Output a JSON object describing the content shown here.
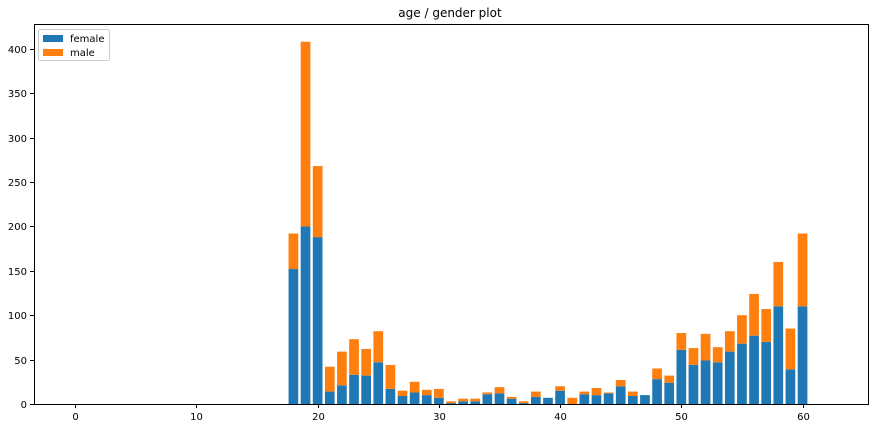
{
  "chart_data": {
    "type": "bar",
    "stacked": true,
    "title": "age / gender plot",
    "xlabel": "",
    "ylabel": "",
    "xlim": [
      -3.4,
      65.4
    ],
    "ylim": [
      0,
      428
    ],
    "xticks": [
      0,
      10,
      20,
      30,
      40,
      50,
      60
    ],
    "yticks": [
      0,
      50,
      100,
      150,
      200,
      250,
      300,
      350,
      400
    ],
    "grid": false,
    "legend_position": "top-left",
    "x": [
      18,
      19,
      20,
      21,
      22,
      23,
      24,
      25,
      26,
      27,
      28,
      29,
      30,
      31,
      32,
      33,
      34,
      35,
      36,
      37,
      38,
      39,
      40,
      41,
      42,
      43,
      44,
      45,
      46,
      47,
      48,
      49,
      50,
      51,
      52,
      53,
      54,
      55,
      56,
      57,
      58,
      59,
      60
    ],
    "series": [
      {
        "name": "female",
        "color": "#1f77b4",
        "values": [
          152,
          200,
          188,
          14,
          21,
          33,
          32,
          47,
          17,
          9,
          13,
          10,
          7,
          1,
          3,
          3,
          11,
          12,
          6,
          1,
          8,
          7,
          15,
          0,
          11,
          10,
          12,
          20,
          9,
          10,
          28,
          24,
          61,
          44,
          49,
          47,
          59,
          68,
          77,
          70,
          110,
          39,
          110
        ]
      },
      {
        "name": "male",
        "color": "#ff7f0e",
        "values": [
          40,
          208,
          80,
          28,
          38,
          40,
          30,
          35,
          27,
          6,
          12,
          6,
          10,
          2,
          3,
          3,
          2,
          7,
          2,
          2,
          6,
          0,
          5,
          7,
          3,
          8,
          1,
          7,
          5,
          0,
          12,
          8,
          19,
          19,
          30,
          17,
          23,
          32,
          47,
          37,
          50,
          46,
          82
        ]
      }
    ]
  }
}
